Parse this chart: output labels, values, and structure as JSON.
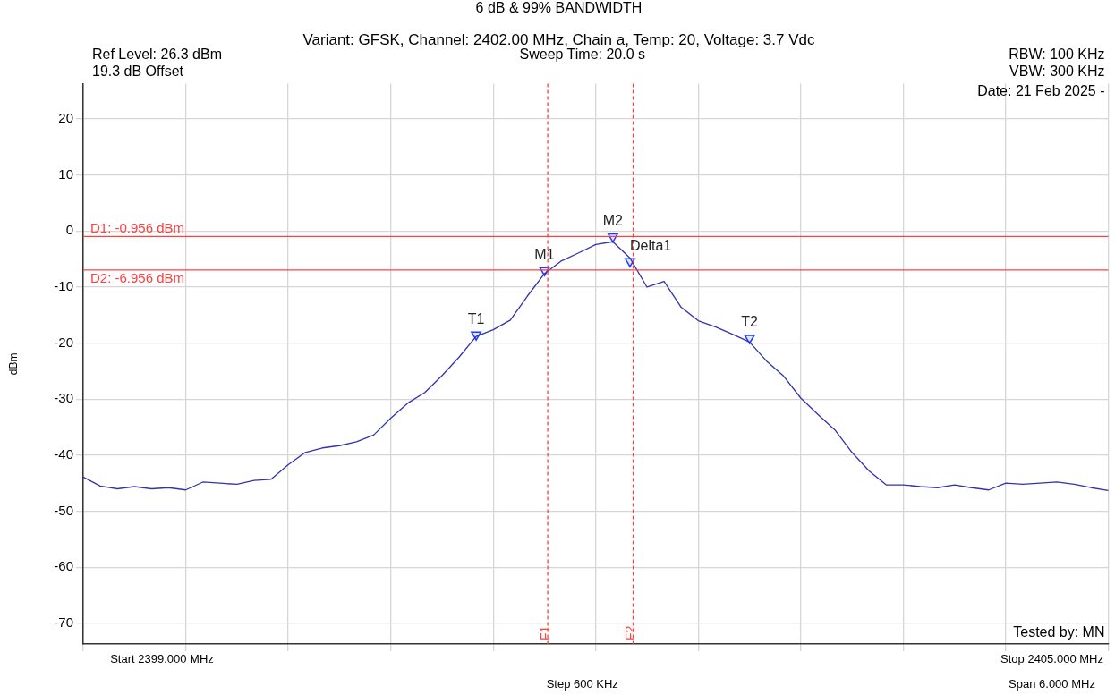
{
  "chart_data": {
    "type": "line",
    "title": "6 dB & 99% BANDWIDTH",
    "subtitle": "Variant: GFSK, Channel: 2402.00 MHz, Chain a, Temp: 20, Voltage: 3.7 Vdc",
    "ylabel": "dBm",
    "categories": [
      null,
      null,
      null,
      null,
      null,
      null,
      null,
      null,
      null,
      null,
      null,
      null,
      null,
      null,
      null,
      null,
      null,
      null,
      null,
      null,
      null,
      null,
      null,
      null,
      null,
      null,
      null,
      null,
      null,
      null,
      null,
      null,
      null,
      null,
      null,
      null,
      null,
      null,
      null,
      null,
      null,
      null,
      null,
      null,
      null,
      null,
      null,
      null,
      null,
      null,
      null,
      null,
      null,
      null,
      null,
      null,
      null,
      null,
      null,
      null,
      null
    ],
    "series": [
      {
        "color": "#3333aa",
        "values": [
          -43.9,
          -45.5,
          -46.0,
          -45.6,
          -46.0,
          -45.8,
          -46.2,
          -44.8,
          -45.0,
          -45.2,
          -44.5,
          -44.3,
          -41.7,
          -39.5,
          -38.7,
          -38.3,
          -37.6,
          -36.4,
          -33.4,
          -30.7,
          -28.8,
          -25.8,
          -22.5,
          -18.8,
          -17.6,
          -15.9,
          -11.6,
          -7.6,
          -5.3,
          -3.9,
          -2.4,
          -1.9,
          -4.8,
          -10.0,
          -9.0,
          -13.6,
          -16.0,
          -17.1,
          -18.4,
          -19.8,
          -23.2,
          -25.9,
          -29.8,
          -32.7,
          -35.5,
          -39.5,
          -42.8,
          -45.3,
          -45.3,
          -45.6,
          -45.8,
          -45.3,
          -45.8,
          -46.2,
          -45.0,
          -45.2,
          -45.0,
          -44.8,
          -45.2,
          -45.8,
          -46.3
        ]
      },
      {
        "type": "scatter",
        "color": "#1a3cff",
        "marker": "triangle",
        "values": [
          null,
          null,
          null,
          null,
          null,
          null,
          null,
          null,
          null,
          null,
          null,
          null,
          null,
          null,
          null,
          null,
          null,
          null,
          null,
          null,
          null,
          null,
          null,
          -18.5,
          null,
          null,
          null,
          -7.0,
          null,
          null,
          null,
          -1.0,
          -5.4,
          null,
          null,
          null,
          null,
          null,
          null,
          -19.1,
          null,
          null,
          null,
          null,
          null,
          null,
          null,
          null,
          null,
          null,
          null,
          null,
          null,
          null,
          null,
          null,
          null,
          null,
          null,
          null,
          null
        ],
        "value_labels": [
          null,
          null,
          null,
          null,
          null,
          null,
          null,
          null,
          null,
          null,
          null,
          null,
          null,
          null,
          null,
          null,
          null,
          null,
          null,
          null,
          null,
          null,
          null,
          "T1",
          null,
          null,
          null,
          "M1",
          null,
          null,
          null,
          "M2",
          "Delta1",
          null,
          null,
          null,
          null,
          null,
          null,
          "T2",
          null,
          null,
          null,
          null,
          null,
          null,
          null,
          null,
          null,
          null,
          null,
          null,
          null,
          null,
          null,
          null,
          null,
          null,
          null,
          null,
          null
        ]
      }
    ],
    "ylim": [
      -73.7,
      26.3
    ],
    "yticks": [
      -70,
      -60,
      -50,
      -40,
      -30,
      -20,
      -10,
      0,
      10,
      20
    ],
    "grid": true,
    "legend": false,
    "marker": "none",
    "line_style": "solid",
    "ref_lines": [
      {
        "axis": "y",
        "value": -0.956,
        "label": "D1: -0.956 dBm",
        "color": "#ff4040",
        "line_style": "solid"
      },
      {
        "axis": "y",
        "value": -6.956,
        "label": "D2: -6.956 dBm",
        "color": "#ff4040",
        "line_style": "solid"
      }
    ],
    "annotations": [
      "Ref Level: 26.3 dBm",
      "19.3 dB Offset",
      "Sweep Time: 20.0 s",
      "RBW: 100 KHz",
      "VBW: 300 KHz",
      "Date: 21 Feb 2025 -",
      "Tested by: MN",
      "Start 2399.000 MHz",
      "Stop 2405.000 MHz",
      "Step 600 KHz",
      "Span 6.000 MHz",
      "F1",
      "F2"
    ]
  }
}
